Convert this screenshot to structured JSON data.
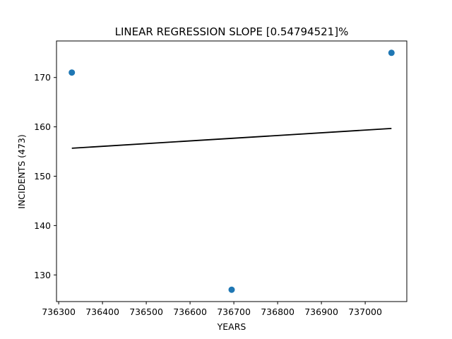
{
  "chart_data": {
    "type": "scatter",
    "title": "LINEAR REGRESSION SLOPE [0.54794521]%",
    "xlabel": "YEARS",
    "ylabel": "INCIDENTS (473)",
    "xlim": [
      736295,
      737095
    ],
    "ylim": [
      124.6,
      177.4
    ],
    "xticks": [
      736300,
      736400,
      736500,
      736600,
      736700,
      736800,
      736900,
      737000
    ],
    "yticks": [
      130,
      140,
      150,
      160,
      170
    ],
    "grid": false,
    "point_color": "#1f77b4",
    "line_color": "#000000",
    "points": [
      {
        "x": 736330,
        "y": 171
      },
      {
        "x": 736695,
        "y": 127
      },
      {
        "x": 737060,
        "y": 175
      }
    ],
    "regression_line": [
      {
        "x": 736330,
        "y": 155.67
      },
      {
        "x": 737060,
        "y": 159.67
      }
    ]
  }
}
